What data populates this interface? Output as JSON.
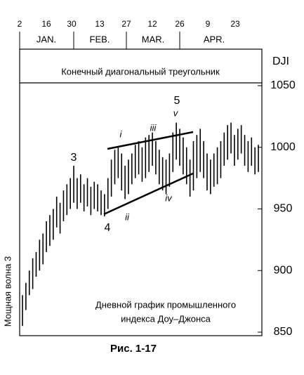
{
  "chart_data": {
    "type": "range_bar",
    "title": "Конечный диагональный треугольник",
    "y_axis_label": "DJI",
    "side_label": "Мощная волна 3",
    "annotation": [
      "Дневной график промышленного",
      "индекса Доу–Джонса"
    ],
    "caption": "Рис. 1-17",
    "top_ticks": [
      "2",
      "16",
      "30",
      "13",
      "27",
      "12",
      "26",
      "9",
      "23"
    ],
    "months": [
      "JAN.",
      "FEB.",
      "MAR.",
      "APR."
    ],
    "wave_labels": [
      "3",
      "4",
      "i",
      "ii",
      "iii",
      "iv",
      "5",
      "v"
    ],
    "color": "#000000",
    "ylim": [
      850,
      1050
    ],
    "yticks": [
      850,
      900,
      950,
      1000,
      1050
    ],
    "lows": [
      855,
      868,
      880,
      885,
      895,
      900,
      905,
      915,
      920,
      925,
      935,
      930,
      940,
      945,
      950,
      955,
      950,
      955,
      948,
      952,
      945,
      950,
      948,
      945,
      944,
      950,
      960,
      970,
      975,
      965,
      958,
      962,
      970,
      975,
      978,
      972,
      975,
      980,
      985,
      978,
      970,
      965,
      962,
      968,
      980,
      990,
      985,
      978,
      970,
      960,
      965,
      975,
      980,
      975,
      965,
      962,
      968,
      970,
      975,
      985,
      990,
      995,
      985,
      990,
      995,
      985,
      980,
      985,
      978,
      980
    ],
    "highs": [
      880,
      890,
      900,
      910,
      915,
      925,
      930,
      940,
      945,
      950,
      960,
      955,
      965,
      970,
      975,
      985,
      975,
      978,
      970,
      975,
      968,
      972,
      970,
      965,
      962,
      975,
      990,
      998,
      1000,
      995,
      985,
      990,
      995,
      1002,
      1005,
      1000,
      1008,
      1010,
      1012,
      1005,
      998,
      992,
      990,
      995,
      1012,
      1020,
      1015,
      1008,
      1000,
      990,
      1005,
      1010,
      1015,
      1005,
      995,
      990,
      995,
      1000,
      1005,
      1012,
      1018,
      1020,
      1010,
      1015,
      1018,
      1010,
      1005,
      1008,
      1000,
      1002
    ]
  }
}
